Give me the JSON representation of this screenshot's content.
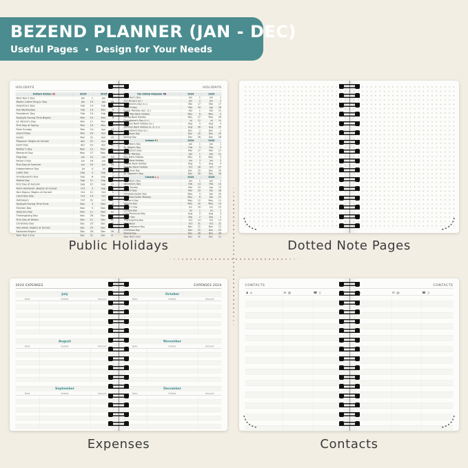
{
  "header": {
    "title": "BEZEND PLANNER (JAN - DEC)",
    "subtitle_left": "Useful Pages",
    "subtitle_sep": "•",
    "subtitle_right": "Design for Your Needs"
  },
  "captions": {
    "holidays": "Public Holidays",
    "dotted": "Dotted Note Pages",
    "expenses": "Expenses",
    "contacts": "Contacts"
  },
  "colors": {
    "banner_teal": "#4a8c8f",
    "accent_teal": "#2f8a8d",
    "background_cream": "#f2eee4",
    "page_white": "#fcfcfa",
    "caption_text": "#3a3a3a",
    "spiral_black": "#111111"
  },
  "holidays_spread": {
    "page_label": "HOLIDAYS",
    "left_sections": [
      {
        "country": "United States",
        "flag": "us-flag-icon",
        "years": [
          "2024",
          "2025"
        ],
        "rows": [
          [
            "New Year's Day",
            "Jan",
            "1",
            "Jan",
            "1"
          ],
          [
            "Martin Luther King Jr. Day",
            "Jan",
            "15",
            "Jan",
            "20"
          ],
          [
            "Valentine's Day",
            "Feb",
            "14",
            "Feb",
            "14"
          ],
          [
            "Ash Wednesday",
            "Feb",
            "14",
            "Mar",
            "5"
          ],
          [
            "Presidents' Day",
            "Feb",
            "19",
            "Feb",
            "17"
          ],
          [
            "Daylight Saving Time Begins",
            "Mar",
            "10",
            "Mar",
            "9"
          ],
          [
            "St. Patrick's Day",
            "Mar",
            "17",
            "Mar",
            "17"
          ],
          [
            "First Day of Spring",
            "Mar",
            "19",
            "Mar",
            "20"
          ],
          [
            "Palm Sunday",
            "Mar",
            "24",
            "Apr",
            "13"
          ],
          [
            "Good Friday",
            "Mar",
            "29",
            "Apr",
            "18"
          ],
          [
            "Easter",
            "Mar",
            "31",
            "Apr",
            "20"
          ],
          [
            "Passover, Begins at Sunset",
            "Apr",
            "22",
            "Apr",
            "12"
          ],
          [
            "Earth Day",
            "Apr",
            "22",
            "Apr",
            "22"
          ],
          [
            "Mother's Day",
            "May",
            "12",
            "May",
            "11"
          ],
          [
            "Memorial Day",
            "May",
            "27",
            "May",
            "26"
          ],
          [
            "Flag Day",
            "Jun",
            "14",
            "Jun",
            "14"
          ],
          [
            "Father's Day",
            "Jun",
            "16",
            "Jun",
            "15"
          ],
          [
            "First Day of Summer",
            "Jun",
            "20",
            "Jun",
            "20"
          ],
          [
            "Independence Day",
            "Jul",
            "4",
            "Jul",
            "4"
          ],
          [
            "Labor Day",
            "Sep",
            "2",
            "Sep",
            "1"
          ],
          [
            "Grandparents Day",
            "Sep",
            "8",
            "Sep",
            "7"
          ],
          [
            "Patriot Day",
            "Sep",
            "11",
            "Sep",
            "11"
          ],
          [
            "First Day of Autumn",
            "Sep",
            "22",
            "Sep",
            "22"
          ],
          [
            "Rosh Hashanah, Begins at Sunset",
            "Oct",
            "2",
            "Sep",
            "22"
          ],
          [
            "Yom Kippur, Begins at Sunset",
            "Oct",
            "11",
            "Oct",
            "1"
          ],
          [
            "Columbus Day",
            "Oct",
            "14",
            "Oct",
            "13"
          ],
          [
            "Halloween",
            "Oct",
            "31",
            "Oct",
            "31"
          ],
          [
            "Daylight Saving Time Ends",
            "Nov",
            "3",
            "Nov",
            "2"
          ],
          [
            "Election Day",
            "Nov",
            "5",
            "Nov",
            "4"
          ],
          [
            "Veterans Day",
            "Nov",
            "11",
            "Nov",
            "11"
          ],
          [
            "Thanksgiving Day",
            "Nov",
            "28",
            "Nov",
            "27"
          ],
          [
            "First Day of Winter",
            "Dec",
            "21",
            "Dec",
            "21"
          ],
          [
            "Christmas Day",
            "Dec",
            "25",
            "Dec",
            "25"
          ],
          [
            "Hanukkah, Begins at Sunset",
            "Dec",
            "25",
            "Dec",
            "14"
          ],
          [
            "Kwanzaa Begins",
            "Dec",
            "26",
            "Dec",
            "26"
          ],
          [
            "New Year's Eve",
            "Dec",
            "31",
            "Dec",
            "31"
          ]
        ]
      }
    ],
    "right_sections": [
      {
        "country": "the United Kingdom",
        "flag": "uk-flag-icon",
        "years": [
          "2024",
          "2025"
        ],
        "rows": [
          [
            "New Year's Day",
            "Jan",
            "1",
            "Jan",
            "1"
          ],
          [
            "2nd January (sc.)",
            "Jan",
            "2",
            "Jan",
            "2"
          ],
          [
            "St. Patrick's Day (n.i.)",
            "Mar",
            "17",
            "Mar",
            "17"
          ],
          [
            "Good Friday",
            "Mar",
            "29",
            "Apr",
            "18"
          ],
          [
            "Easter Monday (exc. sc.)",
            "Apr",
            "1",
            "Apr",
            "21"
          ],
          [
            "Early May Bank Holiday",
            "May",
            "6",
            "May",
            "5"
          ],
          [
            "Spring Bank Holiday",
            "May",
            "27",
            "May",
            "26"
          ],
          [
            "Orangemen's Day (n.i.)",
            "Jul",
            "12",
            "Jul",
            "14"
          ],
          [
            "Summer Bank Holiday (sc.)",
            "Aug",
            "5",
            "Aug",
            "4"
          ],
          [
            "Summer Bank Holiday (e. w. n.i.)",
            "Aug",
            "26",
            "Aug",
            "25"
          ],
          [
            "St. Andrew's Day (sc.)",
            "Dec",
            "2",
            "Dec",
            "1"
          ],
          [
            "Christmas Day",
            "Dec",
            "25",
            "Dec",
            "25"
          ],
          [
            "Boxing Day",
            "Dec",
            "26",
            "Dec",
            "26"
          ]
        ]
      },
      {
        "country": "Ireland",
        "flag": "ireland-flag-icon",
        "years": [
          "2024",
          "2025"
        ],
        "rows": [
          [
            "New Year's Day",
            "Jan",
            "1",
            "Jan",
            "1"
          ],
          [
            "St. Brigid's Day",
            "Feb",
            "5",
            "Feb",
            "3"
          ],
          [
            "St. Patrick's Day",
            "Mar",
            "17",
            "Mar",
            "17"
          ],
          [
            "Easter Monday",
            "Apr",
            "1",
            "Apr",
            "21"
          ],
          [
            "May Bank Holiday",
            "May",
            "6",
            "May",
            "5"
          ],
          [
            "June Bank Holiday",
            "Jun",
            "3",
            "Jun",
            "2"
          ],
          [
            "August Bank Holiday",
            "Aug",
            "5",
            "Aug",
            "4"
          ],
          [
            "October Bank Holiday",
            "Oct",
            "28",
            "Oct",
            "27"
          ],
          [
            "Christmas Day",
            "Dec",
            "25",
            "Dec",
            "25"
          ],
          [
            "St. Stephen's Day",
            "Dec",
            "26",
            "Dec",
            "26"
          ]
        ]
      },
      {
        "country": "Canada",
        "flag": "canada-flag-icon",
        "years": [
          "2024",
          "2025"
        ],
        "rows": [
          [
            "New Year's Day",
            "Jan",
            "1",
            "Jan",
            "1"
          ],
          [
            "Valentine's Day",
            "Feb",
            "14",
            "Feb",
            "14"
          ],
          [
            "Palm Sunday",
            "Mar",
            "24",
            "Apr",
            "13"
          ],
          [
            "Good Friday",
            "Mar",
            "29",
            "Apr",
            "18"
          ],
          [
            "Orthodox Easter Day",
            "May",
            "5",
            "Apr",
            "20"
          ],
          [
            "Orthodox Easter Monday",
            "May",
            "6",
            "Apr",
            "21"
          ],
          [
            "Mother's Day",
            "May",
            "12",
            "May",
            "11"
          ],
          [
            "Victoria Day",
            "May",
            "20",
            "May",
            "19"
          ],
          [
            "Father's Day",
            "Jun",
            "16",
            "Jun",
            "15"
          ],
          [
            "Canada Day",
            "Jul",
            "1",
            "Jul",
            "1"
          ],
          [
            "Civic/Provincial Day",
            "Aug",
            "5",
            "Aug",
            "4"
          ],
          [
            "Labor Day",
            "Sep",
            "2",
            "Sep",
            "1"
          ],
          [
            "Thanksgiving Day",
            "Oct",
            "14",
            "Oct",
            "13"
          ],
          [
            "Halloween",
            "Oct",
            "31",
            "Oct",
            "31"
          ],
          [
            "Remembrance Day",
            "Nov",
            "11",
            "Nov",
            "11"
          ],
          [
            "Christmas Day",
            "Dec",
            "25",
            "Dec",
            "25"
          ],
          [
            "Boxing Day",
            "Dec",
            "26",
            "Dec",
            "26"
          ],
          [
            "New Year's Eve",
            "Dec",
            "31",
            "Dec",
            "31"
          ]
        ]
      }
    ]
  },
  "expenses_spread": {
    "left_title": "2024 EXPENSES",
    "right_title": "EXPENSES 2024",
    "columns": [
      "Date",
      "Details",
      "Amount"
    ],
    "left_months": [
      "July",
      "August",
      "September"
    ],
    "right_months": [
      "October",
      "November",
      "December"
    ]
  },
  "contacts_spread": {
    "page_label": "CONTACTS",
    "column_icons": [
      [
        {
          "name": "person-icon",
          "glyph": "♟"
        },
        {
          "name": "home-icon",
          "glyph": "⌂"
        }
      ],
      [
        {
          "name": "envelope-icon",
          "glyph": "✉"
        },
        {
          "name": "at-icon",
          "glyph": "@"
        }
      ],
      [
        {
          "name": "phone-icon",
          "glyph": "☎"
        },
        {
          "name": "mobile-icon",
          "glyph": "▯"
        }
      ]
    ]
  }
}
